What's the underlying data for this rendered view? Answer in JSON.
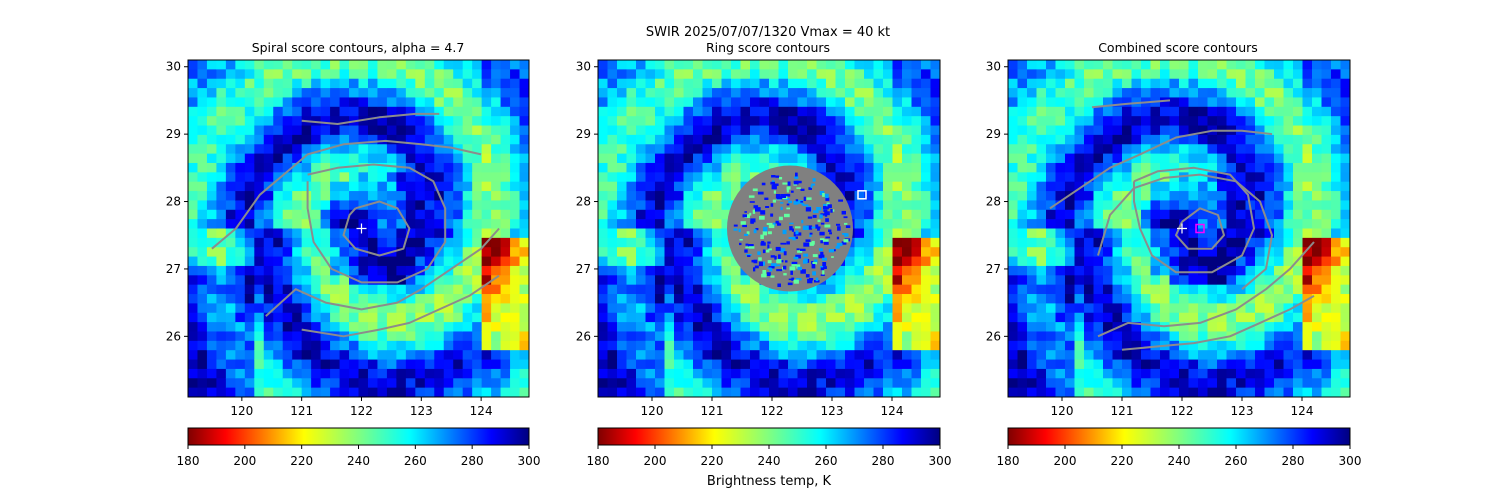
{
  "figure": {
    "suptitle_line1": "SWIR  2025/07/07/1320    Vmax = 40 kt",
    "colorbar_label": "Brightness temp, K"
  },
  "chart_data": [
    {
      "type": "heatmap",
      "title": "Spiral score contours, alpha =  4.7",
      "xlim": [
        119.1,
        124.8
      ],
      "ylim": [
        25.1,
        30.1
      ],
      "xticks": [
        120,
        121,
        122,
        123,
        124
      ],
      "yticks": [
        26,
        27,
        28,
        29,
        30
      ],
      "colorbar": {
        "colormap": "jet_r",
        "range": [
          180,
          300
        ],
        "ticks": [
          180,
          200,
          220,
          240,
          260,
          280,
          300
        ]
      },
      "markers": [
        {
          "kind": "plus",
          "lon": 122.0,
          "lat": 27.6,
          "color": "#ffffff"
        }
      ],
      "contours": [
        [
          [
            119.5,
            27.3
          ],
          [
            119.9,
            27.6
          ],
          [
            120.3,
            28.1
          ],
          [
            120.7,
            28.4
          ],
          [
            121.1,
            28.7
          ],
          [
            121.7,
            28.85
          ],
          [
            122.4,
            28.9
          ],
          [
            123.0,
            28.85
          ],
          [
            123.5,
            28.8
          ],
          [
            124.0,
            28.7
          ]
        ],
        [
          [
            121.1,
            28.4
          ],
          [
            121.6,
            28.5
          ],
          [
            122.2,
            28.55
          ],
          [
            122.8,
            28.5
          ],
          [
            123.2,
            28.3
          ],
          [
            123.4,
            27.9
          ],
          [
            123.4,
            27.4
          ],
          [
            123.1,
            27.0
          ],
          [
            122.6,
            26.8
          ],
          [
            122.0,
            26.8
          ],
          [
            121.5,
            27.0
          ],
          [
            121.2,
            27.4
          ],
          [
            121.1,
            27.9
          ],
          [
            121.1,
            28.3
          ]
        ],
        [
          [
            121.9,
            27.9
          ],
          [
            122.3,
            28.0
          ],
          [
            122.6,
            27.9
          ],
          [
            122.8,
            27.6
          ],
          [
            122.7,
            27.3
          ],
          [
            122.3,
            27.2
          ],
          [
            121.9,
            27.3
          ],
          [
            121.7,
            27.5
          ],
          [
            121.8,
            27.8
          ],
          [
            121.9,
            27.9
          ]
        ],
        [
          [
            121.0,
            29.2
          ],
          [
            121.6,
            29.15
          ],
          [
            122.3,
            29.25
          ],
          [
            122.9,
            29.3
          ],
          [
            123.3,
            29.3
          ]
        ],
        [
          [
            120.4,
            26.3
          ],
          [
            120.9,
            26.7
          ],
          [
            121.4,
            26.5
          ],
          [
            122.0,
            26.4
          ],
          [
            122.6,
            26.5
          ],
          [
            123.0,
            26.7
          ],
          [
            123.5,
            27.0
          ],
          [
            124.0,
            27.3
          ],
          [
            124.3,
            27.6
          ]
        ],
        [
          [
            121.0,
            26.1
          ],
          [
            121.7,
            26.0
          ],
          [
            122.3,
            26.1
          ],
          [
            122.8,
            26.2
          ],
          [
            123.3,
            26.4
          ],
          [
            123.8,
            26.6
          ],
          [
            124.3,
            26.9
          ]
        ]
      ]
    },
    {
      "type": "heatmap",
      "title": "Ring score contours",
      "xlim": [
        119.1,
        124.8
      ],
      "ylim": [
        25.1,
        30.1
      ],
      "xticks": [
        120,
        121,
        122,
        123,
        124
      ],
      "yticks": [
        26,
        27,
        28,
        29,
        30
      ],
      "colorbar": {
        "colormap": "jet_r",
        "range": [
          180,
          300
        ],
        "ticks": [
          180,
          200,
          220,
          240,
          260,
          280,
          300
        ]
      },
      "ring_region": {
        "center": [
          122.3,
          27.6
        ],
        "radius_deg": 1.05,
        "color": "#808080"
      },
      "markers": [
        {
          "kind": "square",
          "lon": 123.5,
          "lat": 28.1,
          "color": "#ffffff"
        }
      ]
    },
    {
      "type": "heatmap",
      "title": "Combined score contours",
      "xlim": [
        119.1,
        124.8
      ],
      "ylim": [
        25.1,
        30.1
      ],
      "xticks": [
        120,
        121,
        122,
        123,
        124
      ],
      "yticks": [
        26,
        27,
        28,
        29,
        30
      ],
      "colorbar": {
        "colormap": "jet_r",
        "range": [
          180,
          300
        ],
        "ticks": [
          180,
          200,
          220,
          240,
          260,
          280,
          300
        ]
      },
      "markers": [
        {
          "kind": "plus",
          "lon": 122.0,
          "lat": 27.6,
          "color": "#ffffff"
        },
        {
          "kind": "square",
          "lon": 122.3,
          "lat": 27.6,
          "color": "#ff00ff"
        }
      ],
      "contours": [
        [
          [
            119.8,
            27.9
          ],
          [
            120.3,
            28.2
          ],
          [
            120.8,
            28.5
          ],
          [
            121.3,
            28.7
          ],
          [
            121.9,
            28.95
          ],
          [
            122.5,
            29.05
          ],
          [
            123.0,
            29.05
          ],
          [
            123.5,
            29.0
          ]
        ],
        [
          [
            120.5,
            29.4
          ],
          [
            121.1,
            29.45
          ],
          [
            121.8,
            29.5
          ]
        ],
        [
          [
            121.2,
            28.3
          ],
          [
            121.6,
            28.45
          ],
          [
            122.2,
            28.5
          ],
          [
            122.8,
            28.4
          ],
          [
            123.1,
            28.1
          ],
          [
            123.2,
            27.6
          ],
          [
            123.0,
            27.2
          ],
          [
            122.5,
            26.95
          ],
          [
            121.9,
            26.95
          ],
          [
            121.5,
            27.2
          ],
          [
            121.3,
            27.6
          ],
          [
            121.2,
            28.0
          ],
          [
            121.2,
            28.3
          ]
        ],
        [
          [
            122.0,
            27.7
          ],
          [
            122.3,
            27.9
          ],
          [
            122.6,
            27.8
          ],
          [
            122.7,
            27.5
          ],
          [
            122.5,
            27.3
          ],
          [
            122.1,
            27.3
          ],
          [
            121.9,
            27.5
          ],
          [
            122.0,
            27.7
          ]
        ],
        [
          [
            120.6,
            27.2
          ],
          [
            120.8,
            27.8
          ],
          [
            121.2,
            28.2
          ],
          [
            121.7,
            28.35
          ],
          [
            122.3,
            28.4
          ],
          [
            122.9,
            28.3
          ],
          [
            123.3,
            28.0
          ],
          [
            123.5,
            27.5
          ],
          [
            123.4,
            27.0
          ],
          [
            123.0,
            26.7
          ]
        ],
        [
          [
            120.6,
            26.0
          ],
          [
            121.1,
            26.2
          ],
          [
            121.7,
            26.15
          ],
          [
            122.3,
            26.2
          ],
          [
            122.9,
            26.4
          ],
          [
            123.4,
            26.7
          ],
          [
            123.8,
            27.0
          ],
          [
            124.2,
            27.4
          ]
        ],
        [
          [
            121.0,
            25.8
          ],
          [
            121.6,
            25.85
          ],
          [
            122.2,
            25.9
          ],
          [
            122.8,
            26.0
          ],
          [
            123.3,
            26.2
          ],
          [
            123.8,
            26.4
          ],
          [
            124.2,
            26.6
          ]
        ]
      ]
    }
  ]
}
